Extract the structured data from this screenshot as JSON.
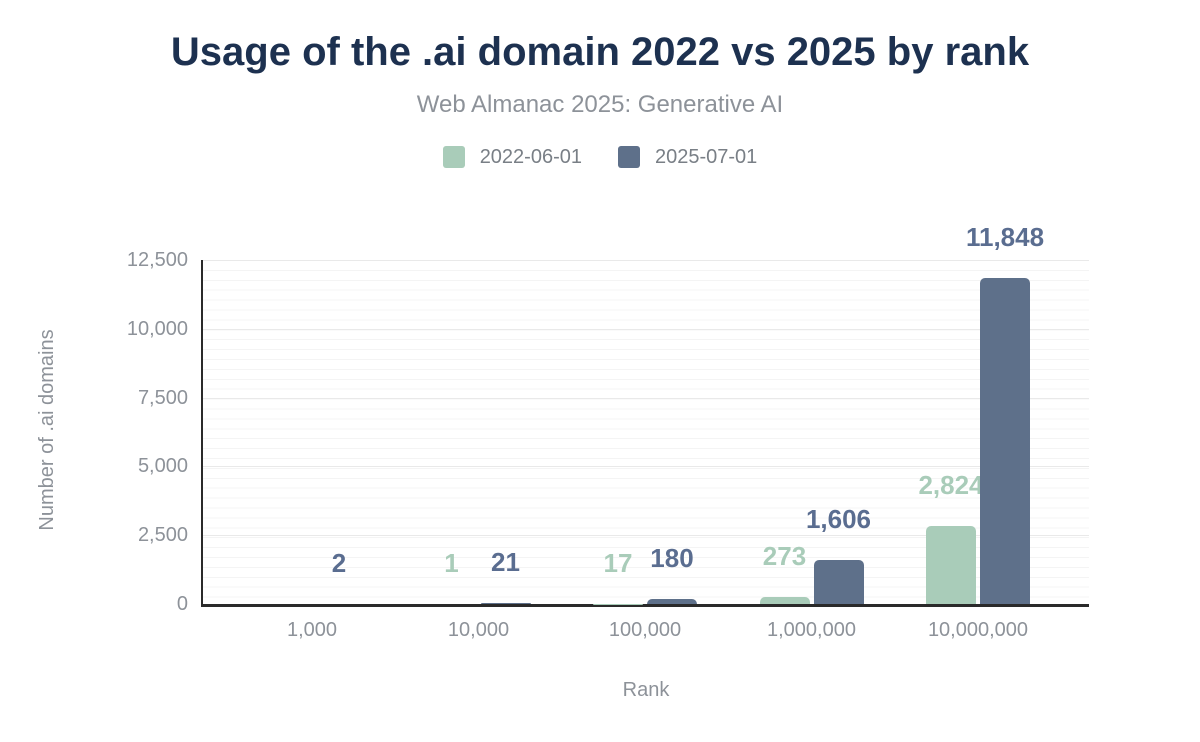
{
  "header": {
    "title": "Usage of the .ai domain 2022 vs 2025 by rank",
    "subtitle": "Web Almanac 2025: Generative AI"
  },
  "legend": [
    {
      "label": "2022-06-01",
      "color": "#a9ccb9"
    },
    {
      "label": "2025-07-01",
      "color": "#5e708a"
    }
  ],
  "chart_data": {
    "type": "bar",
    "title": "Usage of the .ai domain 2022 vs 2025 by rank",
    "subtitle": "Web Almanac 2025: Generative AI",
    "categories": [
      "1,000",
      "10,000",
      "100,000",
      "1,000,000",
      "10,000,000"
    ],
    "series": [
      {
        "name": "2022-06-01",
        "color": "#a9ccb9",
        "label_color": "#a9ccb9",
        "values": [
          0,
          1,
          17,
          273,
          2824
        ],
        "labels": [
          "",
          "1",
          "17",
          "273",
          "2,824"
        ]
      },
      {
        "name": "2025-07-01",
        "color": "#5e708a",
        "label_color": "#5a6d90",
        "values": [
          2,
          21,
          180,
          1606,
          11848
        ],
        "labels": [
          "2",
          "21",
          "180",
          "1,606",
          "11,848"
        ]
      }
    ],
    "xlabel": "Rank",
    "ylabel": "Number of .ai domains",
    "ylim": [
      0,
      12500
    ],
    "yticks": [
      0,
      2500,
      5000,
      7500,
      10000,
      12500
    ],
    "ytick_labels": [
      "0",
      "2,500",
      "5,000",
      "7,500",
      "10,000",
      "12,500"
    ],
    "legend_position": "top",
    "grid": true
  },
  "colors": {
    "title_text": "#1d3150",
    "axis_line": "#2a2a2a",
    "tick_text": "#8d9299",
    "legend_text": "#797f86",
    "gridline_major": "#e9e9e9",
    "gridline_minor": "#f4f4f4"
  }
}
